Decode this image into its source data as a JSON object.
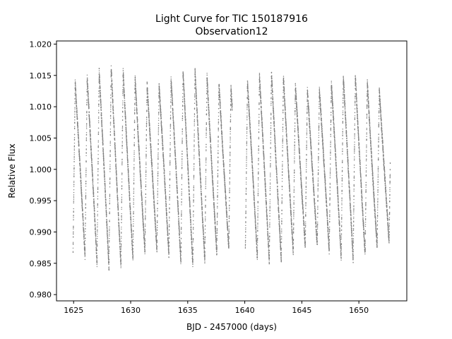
{
  "chart_data": {
    "type": "scatter",
    "title": "Light Curve for TIC 150187916",
    "subtitle": "Observation12",
    "xlabel": "BJD - 2457000 (days)",
    "ylabel": "Relative Flux",
    "xlim": [
      1623.5,
      1654.2
    ],
    "ylim": [
      0.979,
      1.0205
    ],
    "xticks": [
      1625,
      1630,
      1635,
      1640,
      1645,
      1650
    ],
    "yticks": [
      0.98,
      0.985,
      0.99,
      0.995,
      1.0,
      1.005,
      1.01,
      1.015,
      1.02
    ],
    "grid": false,
    "marker_color": "#7f7f7f",
    "series": [
      {
        "segments": [
          {
            "x_start": 1624.95,
            "x_end": 1638.9
          },
          {
            "x_start": 1640.05,
            "x_end": 1652.75
          }
        ],
        "period_days": 1.05,
        "min_flux": 0.984,
        "max_flux": 1.0165,
        "points_per_day": 500
      }
    ]
  }
}
